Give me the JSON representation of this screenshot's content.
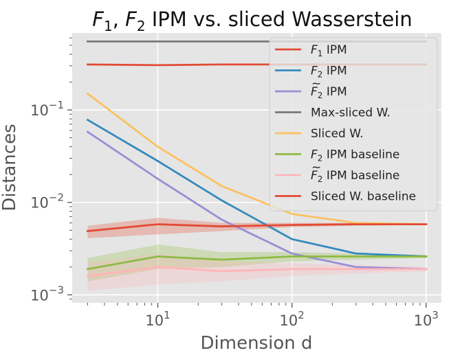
{
  "chart_data": {
    "type": "line",
    "title": "F₁, F₂ IPM vs. sliced Wasserstein",
    "title_parts": {
      "f": "F",
      "sub1": "1",
      "sep": ", ",
      "sub2": "2",
      "rest": " IPM vs. sliced Wasserstein"
    },
    "xlabel": "Dimension d",
    "ylabel": "Distances",
    "xscale": "log",
    "yscale": "log",
    "xlim": [
      2.3,
      1300
    ],
    "ylim": [
      0.00082,
      0.68
    ],
    "grid": true,
    "legend_position": "top-right",
    "x_ticks": [
      {
        "value": 10,
        "base": "10",
        "exp": "1"
      },
      {
        "value": 100,
        "base": "10",
        "exp": "2"
      },
      {
        "value": 1000,
        "base": "10",
        "exp": "3"
      }
    ],
    "y_ticks": [
      {
        "value": 0.001,
        "base": "10",
        "exp": "−3"
      },
      {
        "value": 0.01,
        "base": "10",
        "exp": "−2"
      },
      {
        "value": 0.1,
        "base": "10",
        "exp": "−1"
      }
    ],
    "x": [
      3,
      10,
      30,
      100,
      300,
      1000
    ],
    "series": [
      {
        "name": "F₁ IPM",
        "name_main": "F",
        "name_sub": "1",
        "name_rest": " IPM",
        "tilde": false,
        "color": "#e24a33",
        "values": [
          0.31,
          0.305,
          0.31,
          0.31,
          0.31,
          0.31
        ]
      },
      {
        "name": "F₂ IPM",
        "name_main": "F",
        "name_sub": "2",
        "name_rest": " IPM",
        "tilde": false,
        "color": "#348abd",
        "values": [
          0.078,
          0.028,
          0.0105,
          0.004,
          0.0028,
          0.0026
        ]
      },
      {
        "name": "F̃₂ IPM",
        "name_main": "F",
        "name_sub": "2",
        "name_rest": " IPM",
        "tilde": true,
        "color": "#988ed5",
        "values": [
          0.058,
          0.018,
          0.0065,
          0.0028,
          0.002,
          0.0019
        ]
      },
      {
        "name": "Max-sliced W.",
        "name_main": "Max-sliced W.",
        "name_sub": "",
        "name_rest": "",
        "tilde": false,
        "color": "#777777",
        "values": [
          0.55,
          0.55,
          0.55,
          0.55,
          0.55,
          0.55
        ]
      },
      {
        "name": "Sliced W.",
        "name_main": "Sliced W.",
        "name_sub": "",
        "name_rest": "",
        "tilde": false,
        "color": "#fbc15e",
        "values": [
          0.15,
          0.04,
          0.015,
          0.0075,
          0.006,
          0.0058
        ]
      },
      {
        "name": "F₂ IPM baseline",
        "name_main": "F",
        "name_sub": "2",
        "name_rest": " IPM baseline",
        "tilde": false,
        "color": "#8eba42",
        "values": [
          0.0019,
          0.0026,
          0.0024,
          0.0026,
          0.0026,
          0.0026
        ],
        "band_low": [
          0.0014,
          0.0019,
          0.002,
          0.0023,
          0.0024,
          0.0025
        ],
        "band_high": [
          0.0025,
          0.0035,
          0.0029,
          0.0029,
          0.0028,
          0.0027
        ]
      },
      {
        "name": "F̃₂ IPM baseline",
        "name_main": "F",
        "name_sub": "2",
        "name_rest": " IPM baseline",
        "tilde": true,
        "color": "#ffb5b8",
        "values": [
          0.0016,
          0.002,
          0.0018,
          0.0019,
          0.0019,
          0.0019
        ],
        "band_low": [
          0.0011,
          0.0013,
          0.0014,
          0.0016,
          0.0017,
          0.0018
        ],
        "band_high": [
          0.0022,
          0.0028,
          0.0023,
          0.0022,
          0.0021,
          0.002
        ]
      },
      {
        "name": "Sliced W. baseline",
        "name_main": "Sliced W. baseline",
        "name_sub": "",
        "name_rest": "",
        "tilde": false,
        "color": "#e24a33",
        "values": [
          0.0049,
          0.0058,
          0.0055,
          0.0057,
          0.0058,
          0.0058
        ],
        "band_low": [
          0.0041,
          0.0045,
          0.0049,
          0.0054,
          0.0056,
          0.0057
        ],
        "band_high": [
          0.0056,
          0.0068,
          0.006,
          0.006,
          0.006,
          0.0059
        ]
      }
    ]
  }
}
